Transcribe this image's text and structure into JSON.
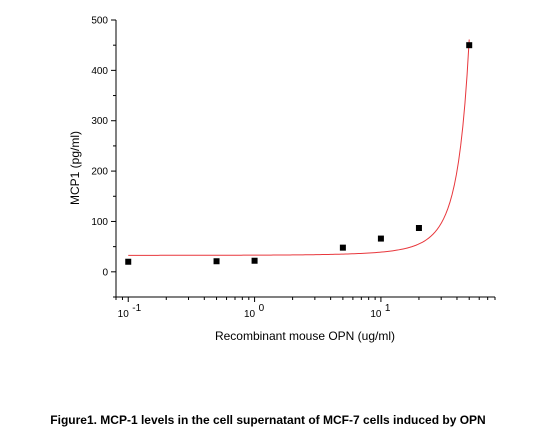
{
  "caption": "Figure1. MCP-1 levels in the cell supernatant of MCF-7 cells induced by OPN",
  "chart_data": {
    "type": "scatter",
    "title": "",
    "xlabel": "Recombinant mouse OPN (ug/ml)",
    "ylabel": "MCP1 (pg/ml)",
    "x_scale": "log",
    "xlim": [
      0.08,
      80
    ],
    "ylim": [
      -50,
      500
    ],
    "x_ticks": [
      {
        "value": 0.1,
        "base": "10",
        "exp": "-1"
      },
      {
        "value": 1,
        "base": "10",
        "exp": "0"
      },
      {
        "value": 10,
        "base": "10",
        "exp": "1"
      }
    ],
    "y_ticks": [
      0,
      100,
      200,
      300,
      400,
      500
    ],
    "grid": false,
    "legend": "none",
    "series": [
      {
        "points": [
          {
            "x": 0.1,
            "y": 20
          },
          {
            "x": 0.5,
            "y": 21
          },
          {
            "x": 1,
            "y": 22
          },
          {
            "x": 5,
            "y": 48
          },
          {
            "x": 10,
            "y": 66
          },
          {
            "x": 20,
            "y": 87
          },
          {
            "x": 50,
            "y": 450
          }
        ],
        "marker": "square",
        "color": "#000000"
      }
    ],
    "fit_curve": {
      "type": "exponential",
      "y0": 28.5,
      "A": 4.2,
      "k": 0.0927,
      "color": "#e8373c"
    }
  }
}
